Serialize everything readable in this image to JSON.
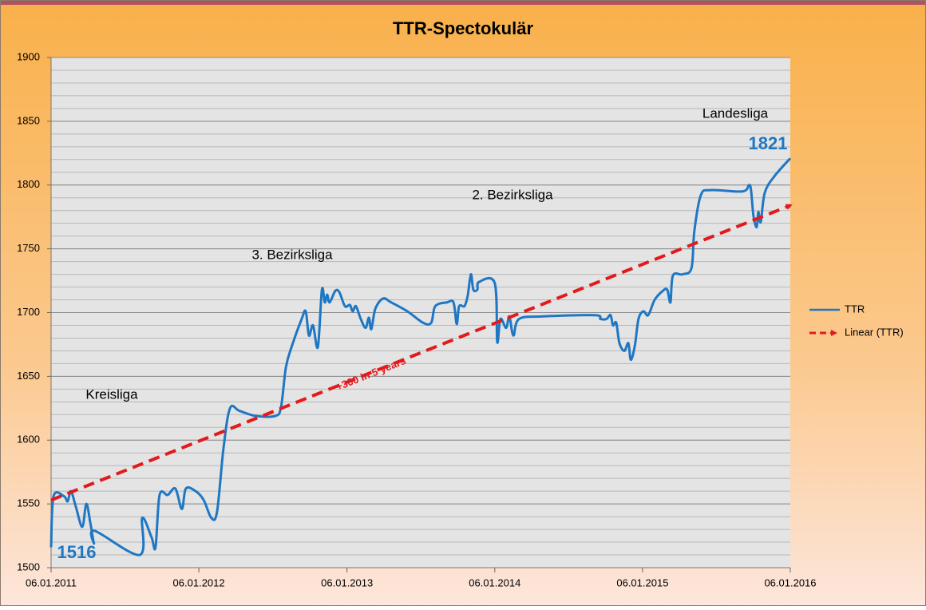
{
  "chart_data": {
    "type": "line",
    "title": "TTR-Spectokulär",
    "xlim": [
      "06.01.2011",
      "06.01.2016"
    ],
    "xticks": [
      "06.01.2011",
      "06.01.2012",
      "06.01.2013",
      "06.01.2014",
      "06.01.2015",
      "06.01.2016"
    ],
    "ylim": [
      1500,
      1900
    ],
    "yticks": [
      1500,
      1550,
      1600,
      1650,
      1700,
      1750,
      1800,
      1850,
      1900
    ],
    "grid": true,
    "y_minor_step": 10,
    "legend": "right",
    "annotations": [
      "Kreisliga",
      "3. Bezirksliga",
      "2. Bezirksliga",
      "Landesliga",
      "1821",
      "1516",
      "+300 in 5 years"
    ],
    "series": [
      {
        "name": "TTR",
        "color": "#1f77c4",
        "line": "solid",
        "x": [
          "06.01.2011",
          "12.01.2011",
          "07.02.2011",
          "16.02.2011",
          "24.02.2011",
          "08.03.2011",
          "24.03.2011",
          "03.04.2011",
          "13.04.2011",
          "22.04.2011",
          "23.04.2011",
          "13.08.2011",
          "19.08.2011",
          "11.09.2011",
          "21.09.2011",
          "01.10.2011",
          "21.10.2011",
          "09.11.2011",
          "25.11.2011",
          "05.12.2011",
          "29.12.2011",
          "18.01.2012",
          "06.02.2012",
          "20.02.2012",
          "07.03.2012",
          "23.03.2012",
          "15.04.2012",
          "25.05.2012",
          "13.07.2012",
          "27.07.2012",
          "08.08.2012",
          "22.08.2012",
          "16.09.2012",
          "26.09.2012",
          "04.10.2012",
          "14.10.2012",
          "26.10.2012",
          "05.11.2012",
          "12.11.2012",
          "18.11.2012",
          "24.11.2012",
          "08.12.2012",
          "18.12.2012",
          "01.01.2013",
          "13.01.2013",
          "20.01.2013",
          "28.01.2013",
          "09.02.2013",
          "21.02.2013",
          "01.03.2013",
          "07.03.2013",
          "17.03.2013",
          "05.04.2013",
          "25.04.2013",
          "04.06.2013",
          "13.07.2013",
          "02.08.2013",
          "12.08.2013",
          "10.09.2013",
          "26.09.2013",
          "04.10.2013",
          "10.10.2013",
          "23.10.2013",
          "31.10.2013",
          "08.11.2013",
          "14.11.2013",
          "24.11.2013",
          "28.11.2013",
          "06.01.2014",
          "12.01.2014",
          "20.01.2014",
          "03.02.2014",
          "11.02.2014",
          "21.02.2014",
          "07.03.2014",
          "05.05.2014",
          "10.09.2014",
          "24.09.2014",
          "09.10.2014",
          "19.10.2014",
          "25.10.2014",
          "02.11.2014",
          "10.11.2014",
          "22.11.2014",
          "02.12.2014",
          "08.12.2014",
          "18.12.2014",
          "27.12.2014",
          "08.01.2015",
          "20.01.2015",
          "05.02.2015",
          "25.02.2015",
          "08.03.2015",
          "16.03.2015",
          "22.03.2015",
          "15.04.2015",
          "07.05.2015",
          "14.05.2015",
          "30.05.2015",
          "23.06.2015",
          "10.09.2015",
          "26.09.2015",
          "01.10.2015",
          "07.10.2015",
          "15.10.2015",
          "19.10.2015",
          "25.10.2015",
          "04.11.2015",
          "28.11.2015",
          "06.01.2016"
        ],
        "values": [
          1516,
          1556,
          1556,
          1552,
          1560,
          1548,
          1532,
          1550,
          1535,
          1519,
          1529,
          1510,
          1539,
          1524,
          1516,
          1557,
          1557,
          1562,
          1546,
          1562,
          1560,
          1553,
          1539,
          1544,
          1594,
          1625,
          1623,
          1619,
          1619,
          1626,
          1657,
          1673,
          1695,
          1701,
          1682,
          1690,
          1673,
          1718,
          1708,
          1714,
          1708,
          1717,
          1716,
          1705,
          1706,
          1701,
          1705,
          1695,
          1688,
          1696,
          1687,
          1703,
          1711,
          1708,
          1701,
          1692,
          1692,
          1705,
          1708,
          1708,
          1691,
          1705,
          1705,
          1713,
          1730,
          1718,
          1718,
          1724,
          1723,
          1677,
          1695,
          1688,
          1697,
          1682,
          1695,
          1697,
          1698,
          1695,
          1695,
          1698,
          1690,
          1692,
          1676,
          1670,
          1676,
          1663,
          1674,
          1695,
          1701,
          1698,
          1710,
          1717,
          1718,
          1708,
          1729,
          1730,
          1735,
          1764,
          1792,
          1796,
          1795,
          1800,
          1796,
          1776,
          1767,
          1779,
          1771,
          1794,
          1807,
          1821
        ]
      },
      {
        "name": "Linear (TTR)",
        "color": "#e31a1c",
        "line": "dashed",
        "x": [
          "06.01.2011",
          "06.01.2016"
        ],
        "values": [
          1553,
          1784
        ]
      }
    ]
  }
}
